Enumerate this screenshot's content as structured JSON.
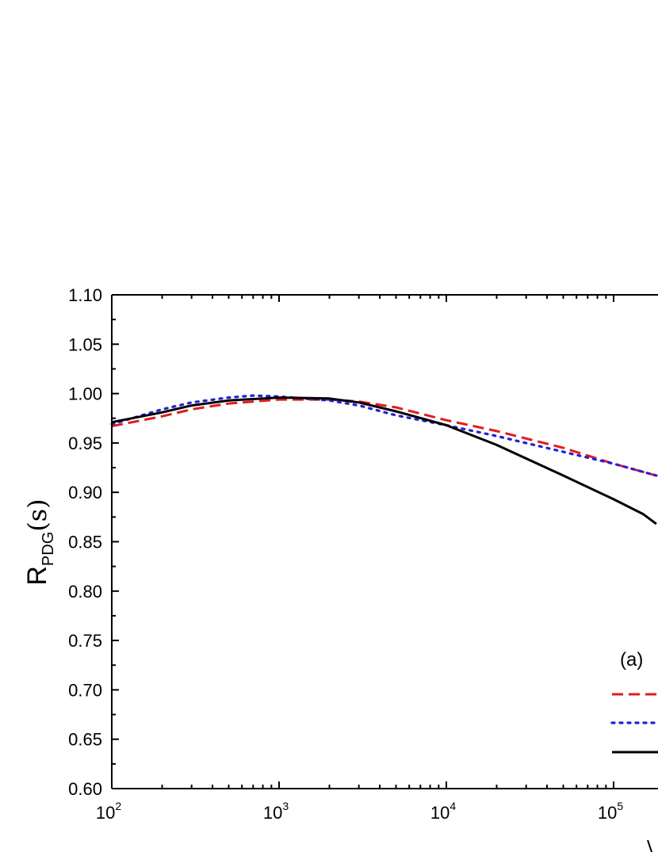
{
  "chart_data": {
    "type": "line",
    "title": "",
    "panel_label": "(a)",
    "x_scale": "log",
    "xlim": [
      100,
      1000000
    ],
    "ylim": [
      0.6,
      1.1
    ],
    "grid": false,
    "legend": "bottom-right",
    "ylabel": {
      "main": "R",
      "sub": "PDG",
      "arg": "(s)"
    },
    "x_ticks": [
      {
        "base": "10",
        "exp": "2"
      },
      {
        "base": "10",
        "exp": "3"
      },
      {
        "base": "10",
        "exp": "4"
      },
      {
        "base": "10",
        "exp": "5"
      }
    ],
    "y_ticks": [
      "0.60",
      "0.65",
      "0.70",
      "0.75",
      "0.80",
      "0.85",
      "0.90",
      "0.95",
      "1.00",
      "1.05",
      "1.10"
    ],
    "series": [
      {
        "color": "#e41a1c",
        "style": "dashed",
        "points": [
          [
            100,
            0.967
          ],
          [
            200,
            0.977
          ],
          [
            300,
            0.984
          ],
          [
            500,
            0.99
          ],
          [
            1000,
            0.994
          ],
          [
            2000,
            0.994
          ],
          [
            3000,
            0.992
          ],
          [
            5000,
            0.986
          ],
          [
            10000,
            0.973
          ],
          [
            20000,
            0.962
          ],
          [
            50000,
            0.945
          ],
          [
            100000,
            0.929
          ],
          [
            180000,
            0.917
          ]
        ]
      },
      {
        "color": "#1f1fe6",
        "style": "dotted",
        "points": [
          [
            100,
            0.969
          ],
          [
            200,
            0.984
          ],
          [
            300,
            0.991
          ],
          [
            500,
            0.996
          ],
          [
            700,
            0.998
          ],
          [
            1000,
            0.997
          ],
          [
            2000,
            0.993
          ],
          [
            3000,
            0.988
          ],
          [
            5000,
            0.978
          ],
          [
            10000,
            0.968
          ],
          [
            20000,
            0.957
          ],
          [
            50000,
            0.941
          ],
          [
            100000,
            0.929
          ],
          [
            180000,
            0.917
          ]
        ]
      },
      {
        "color": "#000000",
        "style": "solid",
        "points": [
          [
            100,
            0.971
          ],
          [
            200,
            0.981
          ],
          [
            300,
            0.988
          ],
          [
            500,
            0.993
          ],
          [
            1000,
            0.996
          ],
          [
            2000,
            0.995
          ],
          [
            3000,
            0.991
          ],
          [
            5000,
            0.982
          ],
          [
            10000,
            0.968
          ],
          [
            20000,
            0.948
          ],
          [
            50000,
            0.917
          ],
          [
            100000,
            0.893
          ],
          [
            150000,
            0.878
          ],
          [
            180000,
            0.868
          ]
        ]
      }
    ]
  }
}
